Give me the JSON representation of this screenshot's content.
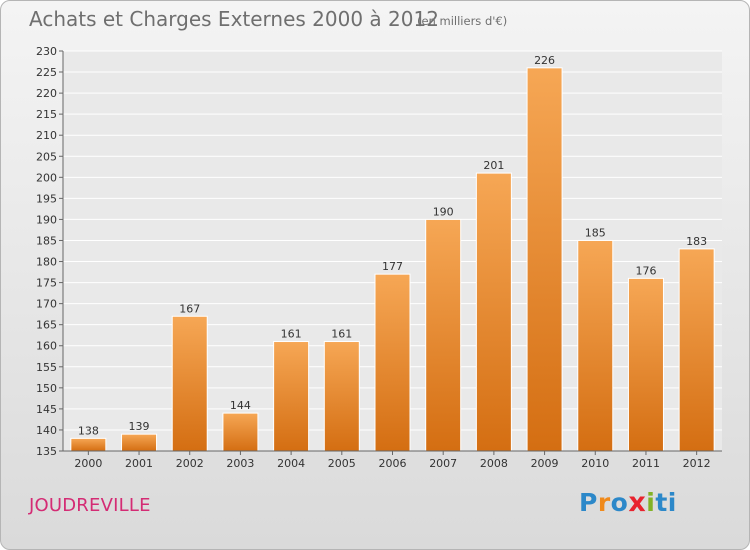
{
  "header": {
    "title": "Achats et Charges Externes 2000 à 2012",
    "unit": "(en milliers d'€)"
  },
  "footer": {
    "place": "JOUDREVILLE",
    "logo": [
      "P",
      "r",
      "o",
      "x",
      "i",
      "ti"
    ]
  },
  "colors": {
    "bar_top": "#f6a755",
    "bar_bottom": "#d46e12",
    "grid": "#ffffff",
    "title": "#6f6f6f",
    "place": "#d42b74"
  },
  "chart_data": {
    "type": "bar",
    "title": "Achats et Charges Externes 2000 à 2012",
    "unit": "(en milliers d'€)",
    "categories": [
      "2000",
      "2001",
      "2002",
      "2003",
      "2004",
      "2005",
      "2006",
      "2007",
      "2008",
      "2009",
      "2010",
      "2011",
      "2012"
    ],
    "values": [
      138,
      139,
      167,
      144,
      161,
      161,
      177,
      190,
      201,
      226,
      185,
      176,
      183
    ],
    "ylim": [
      135,
      230
    ],
    "yticks": [
      135,
      140,
      145,
      150,
      155,
      160,
      165,
      170,
      175,
      180,
      185,
      190,
      195,
      200,
      205,
      210,
      215,
      220,
      225,
      230
    ],
    "grid": true,
    "legend": "none"
  }
}
